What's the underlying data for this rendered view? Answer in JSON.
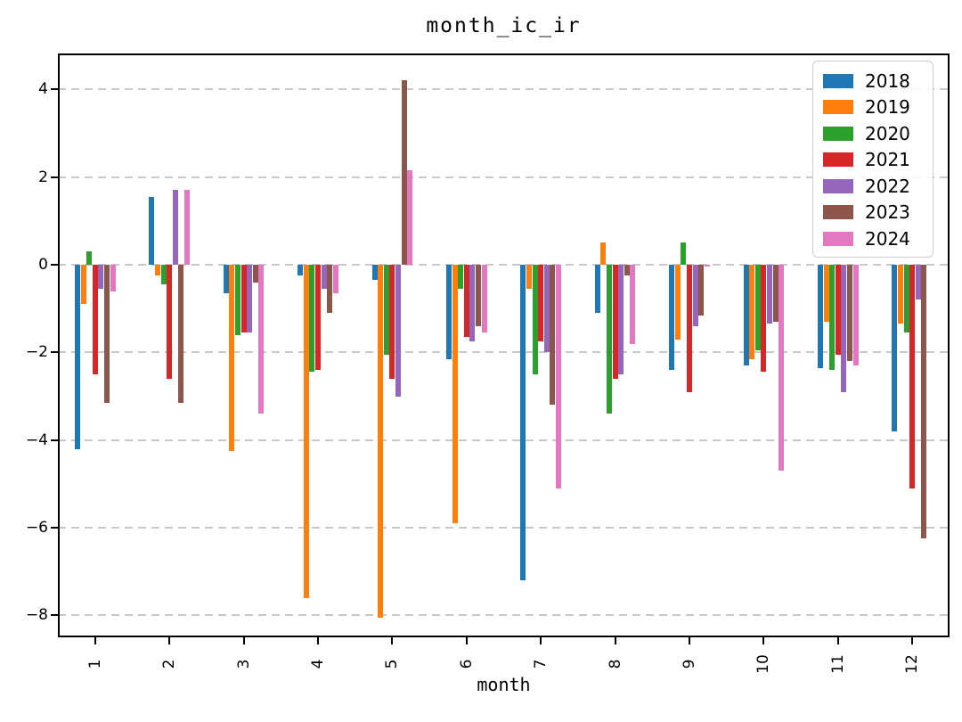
{
  "chart_data": {
    "type": "bar",
    "title": "month_ic_ir",
    "xlabel": "month",
    "ylabel": "",
    "categories": [
      "1",
      "2",
      "3",
      "4",
      "5",
      "6",
      "7",
      "8",
      "9",
      "10",
      "11",
      "12"
    ],
    "series": [
      {
        "name": "2018",
        "color": "#1f77b4",
        "values": [
          -4.2,
          1.55,
          -0.65,
          -0.25,
          -0.35,
          -2.15,
          -7.2,
          -1.1,
          -2.4,
          -2.3,
          -2.35,
          -3.8
        ]
      },
      {
        "name": "2019",
        "color": "#ff7f0e",
        "values": [
          -0.9,
          -0.25,
          -4.25,
          -7.6,
          -8.05,
          -5.9,
          -0.55,
          0.5,
          -1.7,
          -2.15,
          -1.3,
          -1.35
        ]
      },
      {
        "name": "2020",
        "color": "#2ca02c",
        "values": [
          0.3,
          -0.45,
          -1.6,
          -2.45,
          -2.05,
          -0.55,
          -2.5,
          -3.4,
          0.5,
          -1.95,
          -2.4,
          -1.55
        ]
      },
      {
        "name": "2021",
        "color": "#d62728",
        "values": [
          -2.5,
          -2.6,
          -1.55,
          -2.4,
          -2.6,
          -1.65,
          -1.75,
          -2.6,
          -2.9,
          -2.45,
          -2.05,
          -5.1
        ]
      },
      {
        "name": "2022",
        "color": "#9467bd",
        "values": [
          -0.55,
          1.7,
          -1.55,
          -0.55,
          -3.0,
          -1.75,
          -2.0,
          -2.5,
          -1.4,
          -1.35,
          -2.9,
          -0.8
        ]
      },
      {
        "name": "2023",
        "color": "#8c564b",
        "values": [
          -3.15,
          -3.15,
          -0.4,
          -1.1,
          4.2,
          -1.4,
          -3.2,
          -0.25,
          -1.15,
          -1.3,
          -2.2,
          -6.25
        ]
      },
      {
        "name": "2024",
        "color": "#e377c2",
        "values": [
          -0.6,
          1.7,
          -3.4,
          -0.65,
          2.15,
          -1.55,
          -5.1,
          -1.8,
          -0.05,
          -4.7,
          -2.3,
          0
        ]
      }
    ],
    "ylim": [
      -8.5,
      4.82
    ],
    "yticks": [
      4,
      2,
      0,
      -2,
      -4,
      -6,
      -8
    ],
    "grid": "horizontal-dashed",
    "legend_position": "upper-right",
    "grid_color": "#c9c9c9",
    "spine_color": "#000000"
  }
}
